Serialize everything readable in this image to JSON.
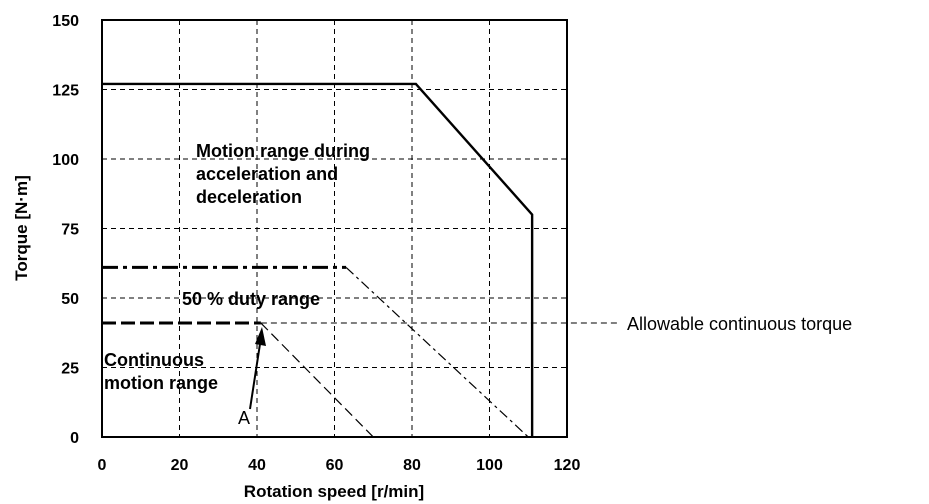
{
  "chart_data": {
    "type": "line",
    "xlabel": "Rotation speed [r/min]",
    "ylabel": "Torque [N·m]",
    "xlim": [
      0,
      120
    ],
    "ylim": [
      0,
      150
    ],
    "x_ticks": [
      "0",
      "20",
      "40",
      "60",
      "80",
      "100",
      "120"
    ],
    "y_ticks": [
      "0",
      "25",
      "50",
      "75",
      "100",
      "125",
      "150"
    ],
    "grid": true,
    "series": [
      {
        "style": "solid",
        "x": [
          0,
          81,
          111,
          111
        ],
        "y": [
          127,
          127,
          80,
          0
        ]
      },
      {
        "style": "dash-dot",
        "x": [
          0,
          63,
          110
        ],
        "y": [
          61,
          61,
          0
        ]
      },
      {
        "style": "dashed",
        "x": [
          0,
          41,
          70
        ],
        "y": [
          41,
          41,
          0
        ]
      }
    ],
    "annotations": {
      "accel_region": [
        "Motion range during",
        "acceleration and",
        "deceleration"
      ],
      "duty_region": "50 % duty range",
      "continuous_region": [
        "Continuous",
        "motion range"
      ],
      "point_label": "A",
      "allowable_label": "Allowable continuous torque",
      "allowable_value": 41
    }
  }
}
